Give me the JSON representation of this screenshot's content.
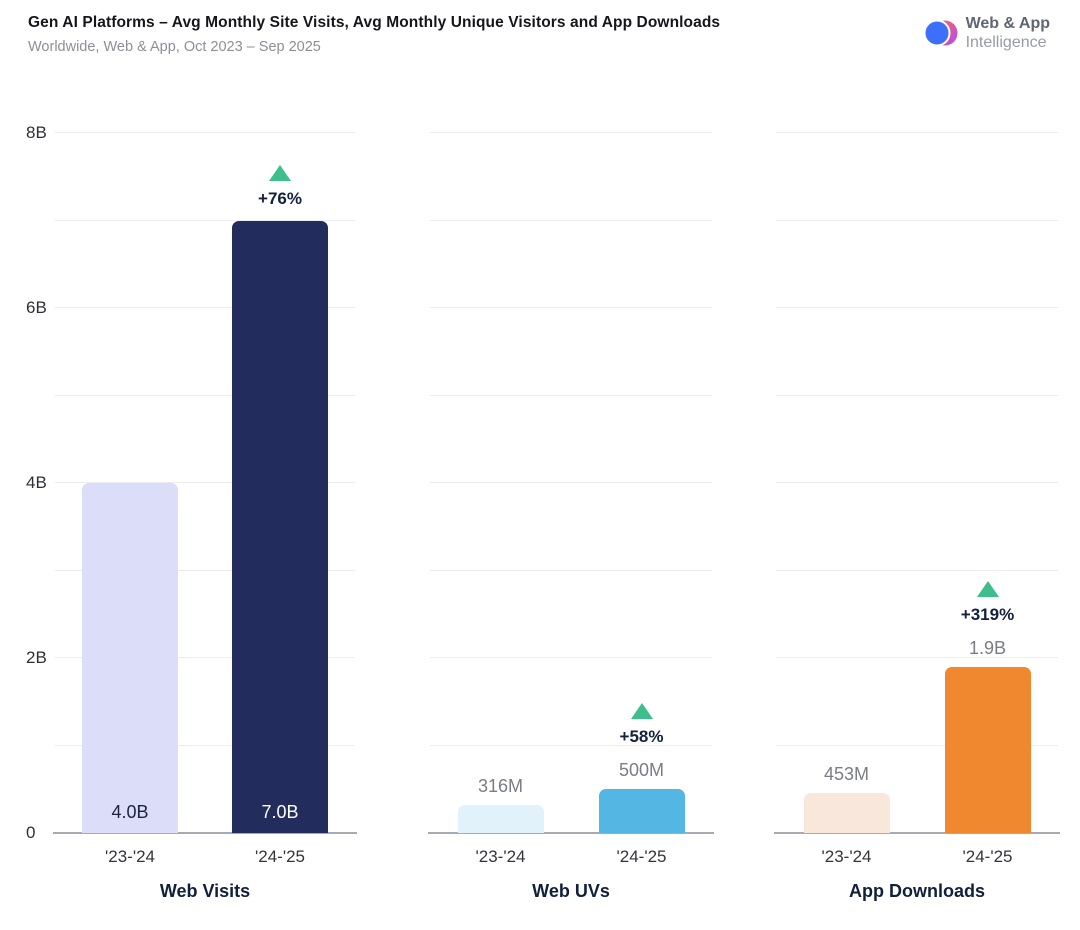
{
  "header": {
    "title": "Gen AI Platforms – Avg Monthly Site Visits, Avg Monthly Unique Visitors and App Downloads",
    "subtitle": "Worldwide, Web & App, Oct 2023 – Sep 2025",
    "logo": {
      "line1": "Web & App",
      "line2": "Intelligence"
    }
  },
  "colors": {
    "growth_green": "#3fbe8d",
    "grid_line": "#ededf0",
    "axis_line": "#a8aab2",
    "title_text": "#15161c",
    "subtitle_text": "#8d8f98",
    "muted_value_label": "#7b7d85",
    "dark_navy_bar": "#222d5e",
    "light_lavender_bar": "#dcddf8",
    "blue_bar": "#54b7e3",
    "light_blue_bar": "#e2f2fa",
    "orange_bar": "#f0882f",
    "light_peach_bar": "#fae7dc"
  },
  "chart_data": {
    "type": "bar",
    "categories": [
      "'23-'24",
      "'24-'25"
    ],
    "y_axis": {
      "unit": "B",
      "max": 8,
      "grid_step": 1,
      "ticks": [
        "0",
        "2B",
        "4B",
        "6B",
        "8B"
      ],
      "tick_values": [
        0,
        2,
        4,
        6,
        8
      ]
    },
    "legend": "none",
    "panels": [
      {
        "title": "Web Visits",
        "values_billions": [
          4.0,
          7.0
        ],
        "value_labels": [
          "4.0B",
          "7.0B"
        ],
        "change": "+76%",
        "value_label_position": "inside",
        "bar_colors": [
          "#dcddf8",
          "#222d5e"
        ],
        "value_label_colors": [
          "#1c2340",
          "#ffffff"
        ]
      },
      {
        "title": "Web UVs",
        "values_billions": [
          0.316,
          0.5
        ],
        "value_labels": [
          "316M",
          "500M"
        ],
        "change": "+58%",
        "value_label_position": "above",
        "bar_colors": [
          "#e2f2fa",
          "#54b7e3"
        ],
        "value_label_colors": [
          "#7b7d85",
          "#7b7d85"
        ]
      },
      {
        "title": "App Downloads",
        "values_billions": [
          0.453,
          1.9
        ],
        "value_labels": [
          "453M",
          "1.9B"
        ],
        "change": "+319%",
        "value_label_position": "above",
        "bar_colors": [
          "#fae7dc",
          "#f0882f"
        ],
        "value_label_colors": [
          "#7b7d85",
          "#7b7d85"
        ]
      }
    ]
  }
}
